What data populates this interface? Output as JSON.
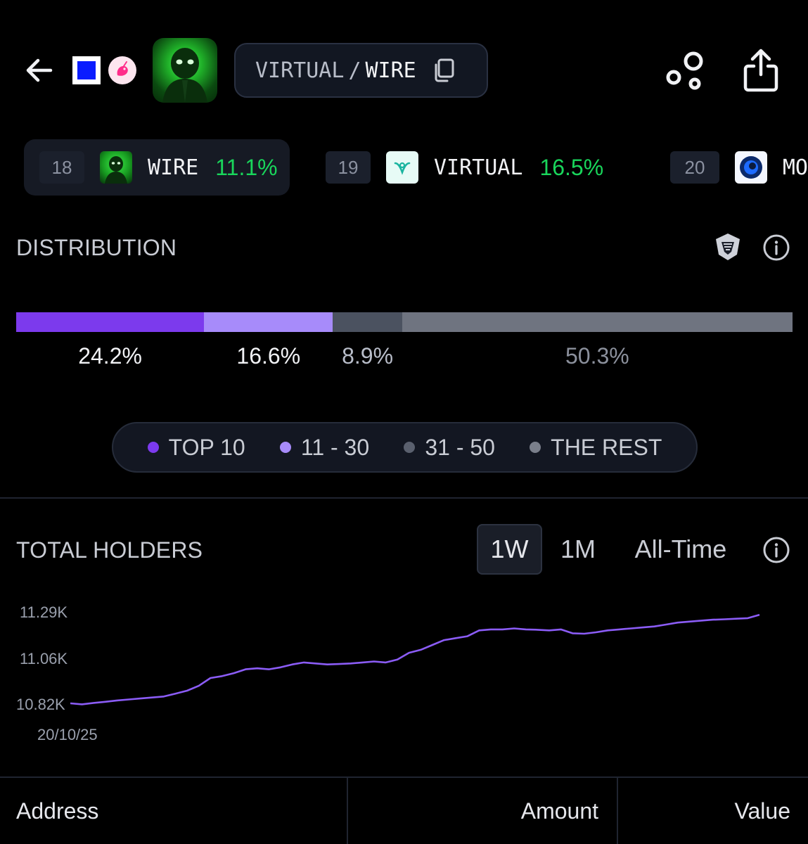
{
  "header": {
    "pair_base": "VIRTUAL",
    "pair_sep": "/",
    "pair_quote": "WIRE",
    "icons": {
      "back": "arrow-left-icon",
      "chain": "chain-square-icon",
      "dex": "uniswap-unicorn-icon",
      "copy": "copy-icon",
      "nodes": "bubble-nodes-icon",
      "share": "share-icon"
    }
  },
  "trending": [
    {
      "rank": "18",
      "symbol": "WIRE",
      "change": "11.1%",
      "active": true
    },
    {
      "rank": "19",
      "symbol": "VIRTUAL",
      "change": "16.5%",
      "active": false
    },
    {
      "rank": "20",
      "symbol": "MO",
      "change": "",
      "active": false
    }
  ],
  "distribution": {
    "title": "DISTRIBUTION",
    "segments": [
      {
        "label": "TOP 10",
        "percent": 24.2,
        "display": "24.2%",
        "color": "#7c3aed"
      },
      {
        "label": "11 - 30",
        "percent": 16.6,
        "display": "16.6%",
        "color": "#a78bfa"
      },
      {
        "label": "31 - 50",
        "percent": 8.9,
        "display": "8.9%",
        "color": "#4b5260"
      },
      {
        "label": "THE REST",
        "percent": 50.3,
        "display": "50.3%",
        "color": "#6f7480"
      }
    ]
  },
  "holders": {
    "title": "TOTAL HOLDERS",
    "tabs": [
      "1W",
      "1M",
      "All-Time"
    ],
    "active_tab": "1W"
  },
  "chart_data": {
    "type": "line",
    "title": "",
    "xlabel": "",
    "ylabel": "",
    "y_ticks": [
      "11.29K",
      "11.06K",
      "10.82K"
    ],
    "x_ticks": [
      "20/10/25"
    ],
    "ylim": [
      10820,
      11290
    ],
    "color": "#8b5cf6",
    "series": [
      {
        "values": [
          10820,
          10815,
          10822,
          10828,
          10835,
          10840,
          10845,
          10850,
          10855,
          10870,
          10885,
          10910,
          10950,
          10960,
          10975,
          10995,
          11000,
          10995,
          11005,
          11020,
          11030,
          11025,
          11020,
          11022,
          11025,
          11030,
          11035,
          11030,
          11045,
          11080,
          11095,
          11120,
          11145,
          11155,
          11165,
          11195,
          11200,
          11200,
          11205,
          11200,
          11198,
          11195,
          11200,
          11180,
          11178,
          11185,
          11195,
          11200,
          11205,
          11210,
          11215,
          11225,
          11235,
          11240,
          11245,
          11250,
          11252,
          11255,
          11258,
          11275
        ]
      }
    ]
  },
  "table": {
    "columns": [
      "Address",
      "Amount",
      "Value"
    ]
  }
}
